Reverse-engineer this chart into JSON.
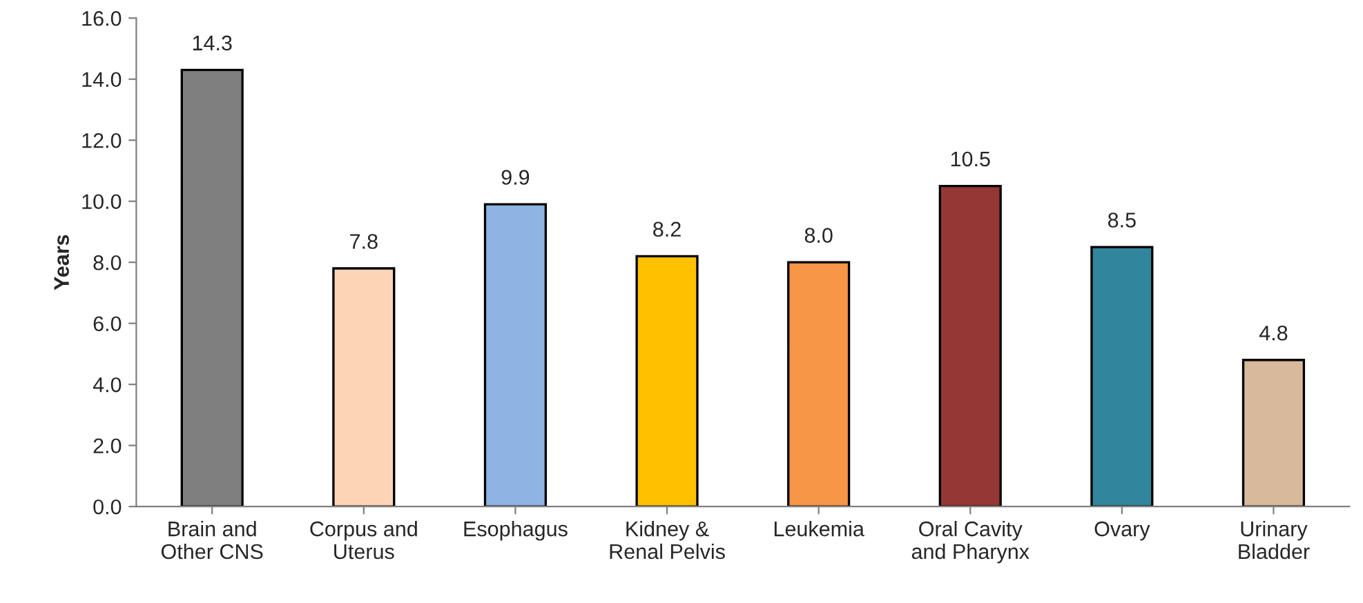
{
  "chart_data": {
    "type": "bar",
    "ylabel": "Years",
    "categories": [
      "Brain and\nOther CNS",
      "Corpus and\nUterus",
      "Esophagus",
      "Kidney &\nRenal Pelvis",
      "Leukemia",
      "Oral Cavity\nand Pharynx",
      "Ovary",
      "Urinary\nBladder"
    ],
    "values": [
      14.3,
      7.8,
      9.9,
      8.2,
      8.0,
      10.5,
      8.5,
      4.8
    ],
    "colors": [
      "#7f7f7f",
      "#fcd5b5",
      "#8eb4e3",
      "#ffc000",
      "#f79646",
      "#953735",
      "#31859c",
      "#d9b99b"
    ],
    "ylim": [
      0,
      16
    ],
    "yticks": [
      {
        "value": 0,
        "label": "0.0"
      },
      {
        "value": 2,
        "label": "2.0"
      },
      {
        "value": 4,
        "label": "4.0"
      },
      {
        "value": 6,
        "label": "6.0"
      },
      {
        "value": 8,
        "label": "8.0"
      },
      {
        "value": 10,
        "label": "10.0"
      },
      {
        "value": 12,
        "label": "12.0"
      },
      {
        "value": 14,
        "label": "14.0"
      },
      {
        "value": 16,
        "label": "16.0"
      }
    ],
    "value_labels": [
      "14.3",
      "7.8",
      "9.9",
      "8.2",
      "8.0",
      "10.5",
      "8.5",
      "4.8"
    ],
    "grid": false,
    "legend": false
  }
}
